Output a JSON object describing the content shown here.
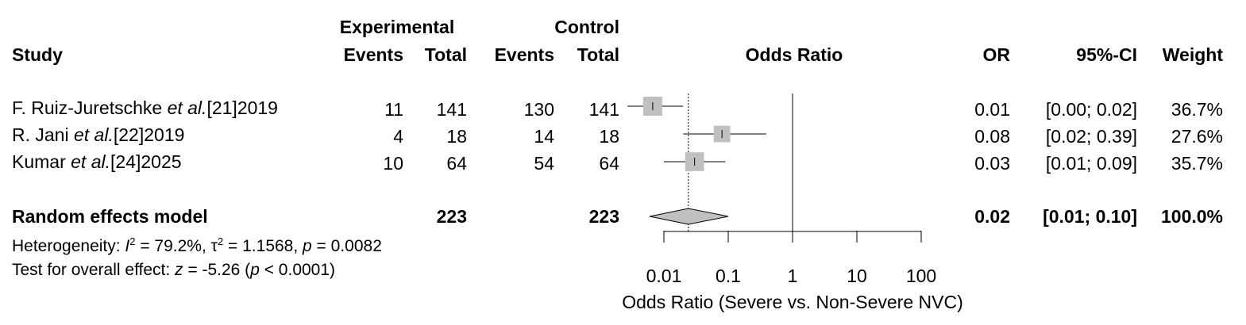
{
  "headers": {
    "study": "Study",
    "experimental": "Experimental",
    "control": "Control",
    "events": "Events",
    "total": "Total",
    "odds_ratio": "Odds Ratio",
    "or": "OR",
    "ci": "95%-CI",
    "weight": "Weight"
  },
  "studies": [
    {
      "author": "F. Ruiz-Juretschke",
      "etal": "et al.",
      "ref": "[21]",
      "year": "2019",
      "exp_events": "11",
      "exp_total": "141",
      "ctrl_events": "130",
      "ctrl_total": "141",
      "or": "0.01",
      "ci": "[0.00; 0.02]",
      "weight": "36.7%"
    },
    {
      "author": "R. Jani",
      "etal": "et al.",
      "ref": "[22]",
      "year": "2019",
      "exp_events": "4",
      "exp_total": "18",
      "ctrl_events": "14",
      "ctrl_total": "18",
      "or": "0.08",
      "ci": "[0.02; 0.39]",
      "weight": "27.6%"
    },
    {
      "author": "Kumar",
      "etal": "et al.",
      "ref": "[24]",
      "year": "2025",
      "exp_events": "10",
      "exp_total": "64",
      "ctrl_events": "54",
      "ctrl_total": "64",
      "or": "0.03",
      "ci": "[0.01; 0.09]",
      "weight": "35.7%"
    }
  ],
  "pooled": {
    "label": "Random effects model",
    "exp_total": "223",
    "ctrl_total": "223",
    "or": "0.02",
    "ci": "[0.01; 0.10]",
    "weight": "100.0%"
  },
  "heterogeneity": {
    "prefix": "Heterogeneity: ",
    "i2_symbol": "I",
    "i2_value": " = 79.2%, ",
    "tau_symbol": "τ",
    "tau_value": " = 1.1568, ",
    "p_symbol": "p",
    "p_value": " = 0.0082"
  },
  "overall_test": {
    "prefix": "Test for overall effect: ",
    "z_symbol": "z",
    "z_value": " = -5.26 (",
    "p_symbol": "p",
    "p_value": " < 0.0001)"
  },
  "chart_data": {
    "type": "forest",
    "scale": "log",
    "x_range": [
      0.01,
      100
    ],
    "x_ticks": [
      "0.01",
      "0.1",
      "1",
      "10",
      "100"
    ],
    "x_tick_values": [
      0.01,
      0.1,
      1,
      10,
      100
    ],
    "xlabel": "Odds Ratio (Severe vs. Non-Severe NVC)",
    "null_line": 1,
    "pooled_reference_line": 0.024,
    "studies": [
      {
        "or": 0.0067,
        "lower": 0.0025,
        "upper": 0.02,
        "weight": 36.7
      },
      {
        "or": 0.08,
        "lower": 0.02,
        "upper": 0.39,
        "weight": 27.6
      },
      {
        "or": 0.03,
        "lower": 0.01,
        "upper": 0.09,
        "weight": 35.7
      }
    ],
    "pooled": {
      "or": 0.024,
      "lower": 0.006,
      "upper": 0.1
    },
    "colors": {
      "box": "#c0c0c0",
      "diamond": "#c0c0c0",
      "line": "#000000"
    }
  }
}
